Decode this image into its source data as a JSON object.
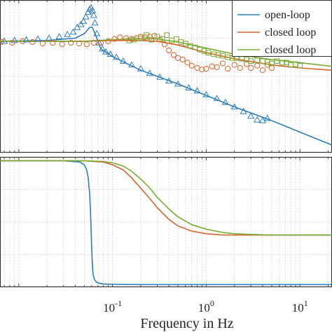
{
  "colors": {
    "open_loop": "#2e7ebc",
    "closed_loop_1": "#d9622b",
    "closed_loop_2": "#77ac30",
    "grid": "#c8c8c8",
    "axes": "#333333"
  },
  "legend": {
    "placement": "top-right",
    "entries": [
      "open-loop",
      "closed loop",
      "closed loop"
    ]
  },
  "xaxis": {
    "label": "Frequency in Hz",
    "scale": "log",
    "tick_labels": [
      {
        "base": "10",
        "exp": "-1"
      },
      {
        "base": "10",
        "exp": "0"
      },
      {
        "base": "10",
        "exp": "1"
      }
    ]
  },
  "chart_data": [
    {
      "type": "line",
      "panel": "top",
      "xscale": "log",
      "xlim": [
        0.0063,
        22
      ],
      "ylim": [
        0,
        1
      ],
      "grid": true,
      "note_y": "y-axis tick labels cropped out of view; y values are relative",
      "series": [
        {
          "name": "open-loop",
          "kind": "line",
          "color": "#2e7ebc",
          "x": [
            0.0063,
            0.02,
            0.04,
            0.05,
            0.057,
            0.061,
            0.066,
            0.075,
            0.1,
            0.2,
            0.5,
            1,
            2,
            5,
            10,
            22
          ],
          "y": [
            0.73,
            0.735,
            0.75,
            0.78,
            0.82,
            0.82,
            0.77,
            0.68,
            0.63,
            0.54,
            0.45,
            0.375,
            0.3,
            0.21,
            0.135,
            0.05
          ]
        },
        {
          "name": "closed loop",
          "kind": "line",
          "color": "#d9622b",
          "x": [
            0.0063,
            0.02,
            0.05,
            0.1,
            0.2,
            0.3,
            0.5,
            1,
            2,
            5,
            10,
            22
          ],
          "y": [
            0.73,
            0.73,
            0.73,
            0.735,
            0.735,
            0.73,
            0.705,
            0.655,
            0.615,
            0.575,
            0.555,
            0.54
          ]
        },
        {
          "name": "closed loop",
          "kind": "line",
          "color": "#77ac30",
          "x": [
            0.0063,
            0.02,
            0.05,
            0.1,
            0.2,
            0.3,
            0.5,
            1,
            2,
            5,
            10,
            22
          ],
          "y": [
            0.73,
            0.73,
            0.73,
            0.74,
            0.745,
            0.745,
            0.725,
            0.685,
            0.645,
            0.61,
            0.59,
            0.565
          ]
        },
        {
          "name": "open-loop",
          "kind": "markers",
          "marker": "triangle",
          "color": "#2e7ebc",
          "x": [
            0.007,
            0.009,
            0.012,
            0.016,
            0.021,
            0.027,
            0.033,
            0.038,
            0.042,
            0.046,
            0.049,
            0.052,
            0.055,
            0.057,
            0.059,
            0.061,
            0.063,
            0.065,
            0.068,
            0.072,
            0.078,
            0.085,
            0.095,
            0.11,
            0.13,
            0.16,
            0.2,
            0.25,
            0.32,
            0.4,
            0.5,
            0.65,
            0.8,
            1,
            1.3,
            1.6,
            2,
            2.5,
            3,
            3.5,
            4,
            4.5
          ],
          "y": [
            0.73,
            0.735,
            0.74,
            0.745,
            0.75,
            0.76,
            0.775,
            0.79,
            0.82,
            0.84,
            0.86,
            0.89,
            0.92,
            0.94,
            0.95,
            0.93,
            0.9,
            0.85,
            0.78,
            0.72,
            0.68,
            0.66,
            0.645,
            0.625,
            0.6,
            0.575,
            0.55,
            0.52,
            0.495,
            0.47,
            0.45,
            0.425,
            0.405,
            0.38,
            0.355,
            0.33,
            0.3,
            0.27,
            0.24,
            0.215,
            0.21,
            0.225
          ]
        },
        {
          "name": "closed loop",
          "kind": "markers",
          "marker": "circle",
          "color": "#d9622b",
          "x": [
            0.0065,
            0.0085,
            0.011,
            0.014,
            0.018,
            0.023,
            0.029,
            0.036,
            0.044,
            0.053,
            0.063,
            0.075,
            0.09,
            0.105,
            0.12,
            0.14,
            0.16,
            0.18,
            0.2,
            0.22,
            0.25,
            0.28,
            0.32,
            0.36,
            0.4,
            0.45,
            0.5,
            0.56,
            0.63,
            0.7,
            0.8,
            0.9,
            1.0,
            1.15,
            1.3,
            1.5,
            1.7,
            2.0,
            2.3,
            2.7,
            3.0,
            3.5,
            4.0,
            4.5,
            5.0
          ],
          "y": [
            0.725,
            0.72,
            0.73,
            0.725,
            0.715,
            0.72,
            0.71,
            0.72,
            0.715,
            0.71,
            0.72,
            0.72,
            0.73,
            0.745,
            0.755,
            0.75,
            0.745,
            0.75,
            0.76,
            0.755,
            0.76,
            0.765,
            0.74,
            0.71,
            0.67,
            0.64,
            0.62,
            0.61,
            0.59,
            0.57,
            0.555,
            0.545,
            0.55,
            0.565,
            0.56,
            0.585,
            0.55,
            0.575,
            0.555,
            0.58,
            0.555,
            0.57,
            0.54,
            0.575,
            0.555
          ]
        },
        {
          "name": "closed loop",
          "kind": "markers",
          "marker": "square",
          "color": "#77ac30",
          "x": [
            0.15,
            0.17,
            0.2,
            0.23,
            0.26,
            0.3,
            0.34,
            0.38,
            0.43,
            0.48,
            0.54,
            0.6,
            0.68,
            0.76,
            0.85,
            0.95,
            1.05,
            1.2,
            1.35,
            1.5,
            1.7,
            1.9,
            2.1,
            2.4,
            2.7,
            3.0,
            3.5,
            4.0,
            4.5,
            5.0,
            5.7,
            6.5,
            7.2,
            8.0,
            9.0,
            10.0
          ],
          "y": [
            0.735,
            0.74,
            0.75,
            0.77,
            0.74,
            0.76,
            0.745,
            0.77,
            0.735,
            0.745,
            0.725,
            0.715,
            0.7,
            0.69,
            0.675,
            0.665,
            0.655,
            0.645,
            0.64,
            0.635,
            0.625,
            0.62,
            0.62,
            0.615,
            0.61,
            0.6,
            0.605,
            0.6,
            0.595,
            0.585,
            0.6,
            0.59,
            0.59,
            0.575,
            0.58,
            0.57
          ]
        }
      ]
    },
    {
      "type": "line",
      "panel": "bottom",
      "xscale": "log",
      "xlim": [
        0.0063,
        22
      ],
      "ylim": [
        0,
        1
      ],
      "grid": true,
      "note_y": "y-axis tick labels cropped out of view; y values are relative",
      "series": [
        {
          "name": "open-loop",
          "kind": "line",
          "color": "#2e7ebc",
          "x": [
            0.0063,
            0.03,
            0.045,
            0.05,
            0.053,
            0.055,
            0.057,
            0.058,
            0.059,
            0.06,
            0.061,
            0.062,
            0.064,
            0.067,
            0.072,
            0.08,
            0.1,
            0.2,
            1,
            22
          ],
          "y": [
            0.97,
            0.97,
            0.96,
            0.94,
            0.9,
            0.84,
            0.72,
            0.6,
            0.45,
            0.3,
            0.18,
            0.1,
            0.06,
            0.04,
            0.03,
            0.025,
            0.022,
            0.02,
            0.02,
            0.02
          ]
        },
        {
          "name": "closed loop",
          "kind": "line",
          "color": "#d9622b",
          "x": [
            0.0063,
            0.05,
            0.08,
            0.1,
            0.13,
            0.16,
            0.2,
            0.25,
            0.3,
            0.4,
            0.5,
            0.7,
            1,
            1.5,
            2,
            3,
            5,
            10,
            22
          ],
          "y": [
            0.97,
            0.97,
            0.96,
            0.94,
            0.9,
            0.84,
            0.76,
            0.68,
            0.61,
            0.52,
            0.47,
            0.43,
            0.41,
            0.4,
            0.4,
            0.4,
            0.4,
            0.4,
            0.4
          ]
        },
        {
          "name": "closed loop",
          "kind": "line",
          "color": "#77ac30",
          "x": [
            0.0063,
            0.05,
            0.08,
            0.1,
            0.13,
            0.16,
            0.2,
            0.25,
            0.3,
            0.4,
            0.5,
            0.7,
            1,
            1.5,
            2,
            3,
            5,
            10,
            22
          ],
          "y": [
            0.97,
            0.97,
            0.965,
            0.955,
            0.93,
            0.89,
            0.83,
            0.76,
            0.69,
            0.6,
            0.54,
            0.48,
            0.445,
            0.42,
            0.41,
            0.405,
            0.4,
            0.4,
            0.4
          ]
        }
      ]
    }
  ]
}
